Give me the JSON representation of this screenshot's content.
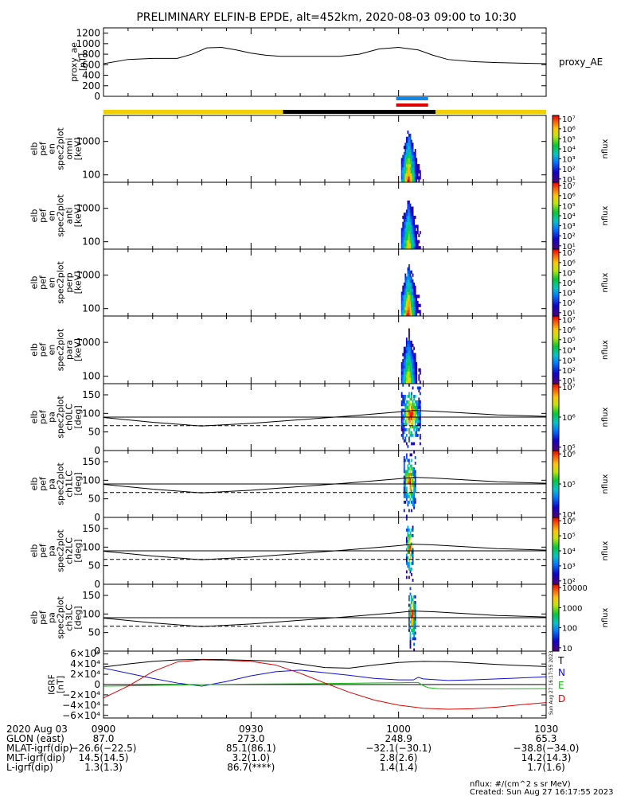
{
  "title": "PRELIMINARY ELFIN-B EPDE, alt=452km, 2020-08-03 09:00 to 10:30",
  "colors": {
    "yellow": "#f3cf00",
    "black": "#000000",
    "blue": "#1188e8",
    "red": "#e00000",
    "green": "#11bb11",
    "ns_blue": "#1010d0"
  },
  "status_bar": {
    "segments": [
      {
        "start": 0,
        "end": 36.5,
        "color": "yellow"
      },
      {
        "start": 36.5,
        "end": 67.5,
        "color": "black"
      },
      {
        "start": 67.5,
        "end": 90,
        "color": "yellow"
      }
    ],
    "markers": [
      {
        "start": 59.5,
        "end": 66,
        "color": "blue"
      },
      {
        "start": 59.5,
        "end": 66,
        "color": "red"
      }
    ]
  },
  "chart_data": [
    {
      "type": "line",
      "name": "proxy_ae",
      "ylabel_lines": [
        "proxy_ae",
        "[nT]"
      ],
      "right_label": "proxy_AE",
      "ylim": [
        0,
        1300
      ],
      "yticks": [
        "0",
        "200",
        "400",
        "600",
        "800",
        "1000",
        "1200"
      ],
      "ytick_values": [
        0,
        200,
        400,
        600,
        800,
        1000,
        1200
      ],
      "x_min": [
        0,
        5,
        10,
        15,
        18,
        21,
        24,
        27,
        30,
        33,
        36,
        40,
        44,
        48,
        52,
        56,
        60,
        64,
        67,
        70,
        75,
        80,
        85,
        90
      ],
      "y": [
        620,
        700,
        720,
        720,
        800,
        920,
        930,
        880,
        820,
        780,
        760,
        760,
        760,
        760,
        800,
        900,
        930,
        880,
        780,
        700,
        660,
        640,
        630,
        620
      ]
    },
    {
      "type": "heatmap",
      "ylabel_lines": [
        "elb",
        "pef",
        "en",
        "spec2plot",
        "omni",
        "[keV]"
      ],
      "yscale": "log",
      "ylim": [
        60,
        6000
      ],
      "yticks": [
        "100",
        "1000"
      ],
      "ytick_values": [
        100,
        1000
      ],
      "colorbar": {
        "label": "nflux",
        "scale": "log",
        "ticks": [
          "10¹",
          "10²",
          "10³",
          "10⁴",
          "10⁵",
          "10⁶",
          "10⁷"
        ],
        "range": [
          1,
          7
        ]
      },
      "active_x_min": [
        60.5,
        64.5
      ]
    },
    {
      "type": "heatmap",
      "ylabel_lines": [
        "elb",
        "pef",
        "en",
        "spec2plot",
        "anti",
        "[keV]"
      ],
      "yscale": "log",
      "ylim": [
        60,
        6000
      ],
      "yticks": [
        "100",
        "1000"
      ],
      "ytick_values": [
        100,
        1000
      ],
      "colorbar": {
        "label": "nflux",
        "scale": "log",
        "ticks": [
          "10¹",
          "10²",
          "10³",
          "10⁴",
          "10⁵",
          "10⁶",
          "10⁷"
        ],
        "range": [
          1,
          7
        ]
      },
      "active_x_min": [
        60.5,
        64.5
      ]
    },
    {
      "type": "heatmap",
      "ylabel_lines": [
        "elb",
        "pef",
        "en",
        "spec2plot",
        "perp",
        "[keV]"
      ],
      "yscale": "log",
      "ylim": [
        60,
        6000
      ],
      "yticks": [
        "100",
        "1000"
      ],
      "ytick_values": [
        100,
        1000
      ],
      "colorbar": {
        "label": "nflux",
        "scale": "log",
        "ticks": [
          "10¹",
          "10²",
          "10³",
          "10⁴",
          "10⁵",
          "10⁶",
          "10⁷"
        ],
        "range": [
          1,
          7
        ]
      },
      "active_x_min": [
        60.5,
        64.5
      ]
    },
    {
      "type": "heatmap",
      "ylabel_lines": [
        "elb",
        "pef",
        "en",
        "spec2plot",
        "para",
        "[keV]"
      ],
      "yscale": "log",
      "ylim": [
        60,
        6000
      ],
      "yticks": [
        "100",
        "1000"
      ],
      "ytick_values": [
        100,
        1000
      ],
      "colorbar": {
        "label": "nflux",
        "scale": "log",
        "ticks": [
          "10¹",
          "10²",
          "10³",
          "10⁴",
          "10⁵",
          "10⁶",
          "10⁷"
        ],
        "range": [
          1,
          7
        ]
      },
      "active_x_min": [
        60.5,
        64.5
      ]
    },
    {
      "type": "heatmap",
      "ylabel_lines": [
        "elb",
        "pef",
        "pa",
        "spec2plot",
        "ch0LC",
        "[deg]"
      ],
      "yscale": "linear",
      "ylim": [
        0,
        180
      ],
      "yticks": [
        "0",
        "50",
        "100",
        "150"
      ],
      "ytick_values": [
        0,
        50,
        100,
        150
      ],
      "colorbar": {
        "label": "nflux",
        "scale": "log",
        "ticks": [
          "10⁵",
          "10⁶",
          "10⁷"
        ],
        "range": [
          4.5,
          7
        ]
      },
      "active_x_min": [
        60.5,
        64.5
      ],
      "lc_x_min": [
        0,
        10,
        20,
        30,
        40,
        50,
        60,
        63,
        67,
        75,
        80,
        90
      ],
      "lc_y": [
        89,
        76,
        66,
        73,
        83,
        93,
        104,
        108,
        106,
        100,
        96,
        92
      ]
    },
    {
      "type": "heatmap",
      "ylabel_lines": [
        "elb",
        "pef",
        "pa",
        "spec2plot",
        "ch1LC",
        "[deg]"
      ],
      "yscale": "linear",
      "ylim": [
        0,
        180
      ],
      "yticks": [
        "0",
        "50",
        "100",
        "150"
      ],
      "ytick_values": [
        0,
        50,
        100,
        150
      ],
      "colorbar": {
        "label": "nflux",
        "scale": "log",
        "ticks": [
          "10⁴",
          "10⁵",
          "10⁶"
        ],
        "range": [
          3.5,
          6.5
        ]
      },
      "active_x_min": [
        61,
        63.5
      ],
      "lc_x_min": [
        0,
        10,
        20,
        30,
        40,
        50,
        60,
        63,
        67,
        75,
        80,
        90
      ],
      "lc_y": [
        89,
        76,
        66,
        73,
        83,
        93,
        104,
        108,
        106,
        100,
        96,
        92
      ]
    },
    {
      "type": "heatmap",
      "ylabel_lines": [
        "elb",
        "pef",
        "pa",
        "spec2plot",
        "ch2LC",
        "[deg]"
      ],
      "yscale": "linear",
      "ylim": [
        0,
        180
      ],
      "yticks": [
        "0",
        "50",
        "100",
        "150"
      ],
      "ytick_values": [
        0,
        50,
        100,
        150
      ],
      "colorbar": {
        "label": "nflux",
        "scale": "log",
        "ticks": [
          "10²",
          "10³",
          "10⁴",
          "10⁵",
          "10⁶"
        ],
        "range": [
          1.5,
          6.2
        ]
      },
      "active_x_min": [
        61.5,
        63
      ],
      "lc_x_min": [
        0,
        10,
        20,
        30,
        40,
        50,
        60,
        63,
        67,
        75,
        80,
        90
      ],
      "lc_y": [
        89,
        76,
        66,
        73,
        83,
        93,
        104,
        108,
        106,
        100,
        96,
        92
      ]
    },
    {
      "type": "heatmap",
      "ylabel_lines": [
        "elb",
        "pef",
        "pa",
        "spec2plot",
        "ch3LC",
        "[deg]"
      ],
      "yscale": "linear",
      "ylim": [
        0,
        180
      ],
      "yticks": [
        "0",
        "50",
        "100",
        "150"
      ],
      "ytick_values": [
        0,
        50,
        100,
        150
      ],
      "colorbar": {
        "label": "nflux",
        "scale": "log",
        "ticks": [
          "10",
          "100",
          "1000",
          "10000"
        ],
        "range": [
          1,
          4.3
        ]
      },
      "active_x_min": [
        62,
        63.5
      ],
      "lc_x_min": [
        0,
        10,
        20,
        30,
        40,
        50,
        60,
        63,
        67,
        75,
        80,
        90
      ],
      "lc_y": [
        89,
        76,
        66,
        73,
        83,
        93,
        104,
        108,
        106,
        100,
        96,
        92
      ]
    },
    {
      "type": "line",
      "ylabel_lines": [
        "IGRF",
        "[nT]"
      ],
      "ylim": [
        -65000,
        65000
      ],
      "yticks": [
        "−6×10⁴",
        "−4×10⁴",
        "−2×10⁴",
        "0",
        "2×10⁴",
        "4×10⁴",
        "6×10⁴"
      ],
      "ytick_values": [
        -60000,
        -40000,
        -20000,
        0,
        20000,
        40000,
        60000
      ],
      "right_labels": [
        "T",
        "N",
        "E",
        "D"
      ],
      "side_note": "Sun Aug 27 16:17:55 2023",
      "series": [
        {
          "name": "T",
          "color": "black",
          "x_min": [
            0,
            5,
            10,
            15,
            20,
            24,
            30,
            36,
            40,
            45,
            50,
            55,
            60,
            65,
            70,
            75,
            80,
            85,
            90
          ],
          "y": [
            34000,
            40000,
            45000,
            48000,
            49000,
            48500,
            47000,
            45000,
            40000,
            33000,
            32000,
            38000,
            43000,
            45000,
            44500,
            42000,
            39000,
            37000,
            35000
          ]
        },
        {
          "name": "N",
          "color": "ns_blue",
          "x_min": [
            0,
            5,
            10,
            15,
            20,
            25,
            30,
            35,
            40,
            45,
            50,
            55,
            60,
            63,
            64,
            65,
            70,
            75,
            80,
            85,
            90
          ],
          "y": [
            32000,
            22000,
            12000,
            3000,
            -3000,
            6000,
            17000,
            25000,
            28000,
            23000,
            18000,
            12000,
            9000,
            9000,
            14000,
            11000,
            8000,
            9000,
            11000,
            13000,
            15000
          ]
        },
        {
          "name": "E",
          "color": "green",
          "x_min": [
            0,
            5,
            10,
            20,
            30,
            40,
            50,
            55,
            60,
            63,
            64,
            65,
            66,
            68,
            70,
            80,
            90
          ],
          "y": [
            -3000,
            -2500,
            -1500,
            0,
            1000,
            1500,
            2500,
            3000,
            3500,
            4000,
            4000,
            -2000,
            -6000,
            -8000,
            -8500,
            -8500,
            -8000
          ]
        },
        {
          "name": "D",
          "color": "red",
          "x_min": [
            0,
            5,
            10,
            15,
            20,
            25,
            30,
            35,
            40,
            45,
            50,
            55,
            60,
            65,
            70,
            75,
            80,
            85,
            90
          ],
          "y": [
            -26000,
            -3000,
            25000,
            44000,
            48000,
            47000,
            45000,
            38000,
            22000,
            3000,
            -15000,
            -30000,
            -40000,
            -46000,
            -48000,
            -47000,
            -44000,
            -39000,
            -35000
          ]
        }
      ]
    }
  ],
  "x_axis": {
    "tick_x_min": [
      0,
      30,
      60,
      90
    ],
    "tick_labels": [
      "0900",
      "0930",
      "1000",
      "1030"
    ],
    "row_labels": [
      "2020 Aug 03",
      "GLON (east)",
      "MLAT-igrf(dip)",
      "MLT-igrf(dip)",
      "L-igrf(dip)"
    ],
    "rows": [
      [
        "87.0",
        "273.0",
        "248.9",
        "65.3"
      ],
      [
        "−26.6(−22.5)",
        "85.1(86.1)",
        "−32.1(−30.1)",
        "−38.8(−34.0)"
      ],
      [
        "14.5(14.5)",
        "3.2(1.0)",
        "2.8(2.6)",
        "14.2(14.3)"
      ],
      [
        "1.3(1.3)",
        "86.7(****)",
        "1.4(1.4)",
        "1.7(1.6)"
      ]
    ]
  },
  "footer": {
    "units": "nflux: #/(cm^2 s sr MeV)",
    "created": "Created: Sun Aug 27 16:17:55 2023"
  }
}
